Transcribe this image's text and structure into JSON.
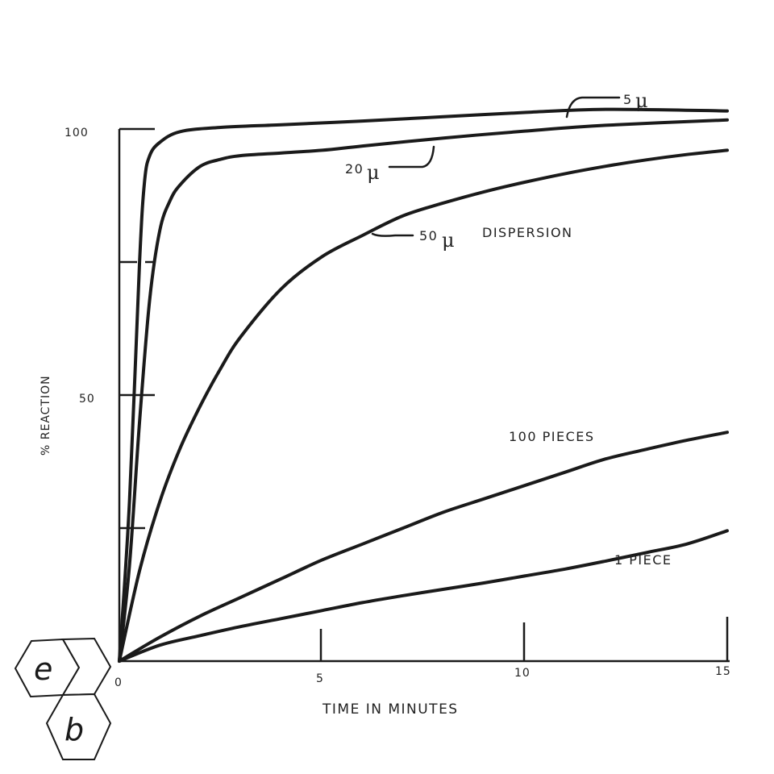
{
  "chart_data": {
    "type": "line",
    "title": "",
    "xlabel": "TIME IN MINUTES",
    "ylabel": "% REACTION",
    "xlim": [
      0,
      15
    ],
    "ylim": [
      0,
      100
    ],
    "x_ticks": [
      "0",
      "5",
      "10",
      "15"
    ],
    "y_ticks": [
      "0",
      "50",
      "100"
    ],
    "grid": false,
    "legend": "none",
    "series": [
      {
        "name": "5μ",
        "label_text": "5",
        "x": [
          0,
          0.25,
          0.5,
          0.62,
          0.75,
          1.0,
          1.5,
          2.5,
          4,
          6,
          8,
          10,
          12,
          15
        ],
        "y": [
          0,
          30,
          75,
          90,
          95,
          97.5,
          99.5,
          100.3,
          100.8,
          101.5,
          102.3,
          103.1,
          103.7,
          103.4
        ]
      },
      {
        "name": "20μ",
        "label_text": "20",
        "x": [
          0,
          0.25,
          0.5,
          0.75,
          1.0,
          1.25,
          1.5,
          2.0,
          2.5,
          3,
          4,
          5,
          6,
          8,
          10,
          12,
          15
        ],
        "y": [
          0,
          18,
          45,
          68,
          81,
          86.5,
          89.5,
          93.0,
          94.3,
          95,
          95.5,
          96,
          96.8,
          98.3,
          99.6,
          100.7,
          101.7
        ]
      },
      {
        "name": "50μ DISPERSION",
        "label_text": "50",
        "label_suffix": "DISPERSION",
        "x": [
          0,
          0.5,
          1,
          1.5,
          2,
          2.5,
          3,
          4,
          5,
          6,
          7,
          8,
          9,
          10,
          11,
          12,
          13,
          14,
          15
        ],
        "y": [
          0,
          17,
          30,
          40,
          48,
          55,
          61,
          70,
          76,
          80,
          83.7,
          86.1,
          88.2,
          90.0,
          91.6,
          93.0,
          94.2,
          95.2,
          96
        ]
      },
      {
        "name": "100 PIECES",
        "label_text": "100 PIECES",
        "x": [
          0,
          1,
          2,
          3,
          4,
          5,
          6,
          7,
          8,
          9,
          10,
          11,
          12,
          13,
          14,
          15
        ],
        "y": [
          0,
          4.5,
          8.5,
          12,
          15.5,
          19,
          22,
          25,
          28,
          30.5,
          33,
          35.5,
          38,
          39.8,
          41.5,
          43
        ]
      },
      {
        "name": "1 PIECE",
        "label_text": "1 PIECE",
        "x": [
          0,
          1,
          2,
          3,
          4,
          5,
          6,
          7,
          8,
          9,
          10,
          11,
          12,
          13,
          14,
          15
        ],
        "y": [
          0,
          3.0,
          4.8,
          6.5,
          8.0,
          9.5,
          11,
          12.3,
          13.5,
          14.7,
          16,
          17.3,
          18.8,
          20.4,
          22.0,
          24.5
        ]
      }
    ]
  },
  "logo": {
    "letters": [
      "e",
      "b"
    ]
  }
}
